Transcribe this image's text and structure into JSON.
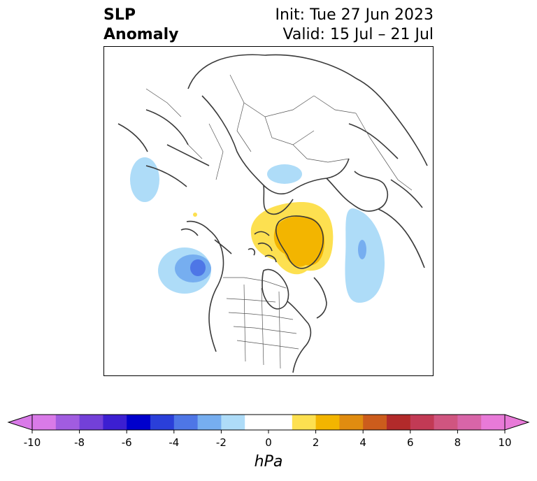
{
  "title": {
    "left_line1": "SLP",
    "left_line2": "Anomaly",
    "right_line1": "Init: Tue 27 Jun 2023",
    "right_line2": "Valid: 15 Jul – 21 Jul"
  },
  "map": {
    "anomaly_features": [
      {
        "kind": "negative",
        "region": "north-pacific-west",
        "level": -1
      },
      {
        "kind": "negative",
        "region": "gulf-of-alaska",
        "level": -3
      },
      {
        "kind": "negative",
        "region": "north-atlantic",
        "level": -2
      },
      {
        "kind": "negative",
        "region": "barents-sea",
        "level": -1
      },
      {
        "kind": "positive",
        "region": "greenland",
        "level": 3
      }
    ]
  },
  "colorbar": {
    "unit": "hPa",
    "ticks": [
      "-10",
      "-8",
      "-6",
      "-4",
      "-2",
      "0",
      "2",
      "4",
      "6",
      "8",
      "10"
    ],
    "colors": [
      "#d97ae8",
      "#a15ce0",
      "#7340d8",
      "#3c1fd1",
      "#0000cc",
      "#2a3fd9",
      "#4e76e6",
      "#76aef0",
      "#aedcf8",
      "#ffffff",
      "#ffffff",
      "#fde050",
      "#f3b500",
      "#e08c10",
      "#cc5c1c",
      "#b22a2a",
      "#c23a55",
      "#d05580",
      "#d865a8",
      "#e87ad8"
    ]
  }
}
